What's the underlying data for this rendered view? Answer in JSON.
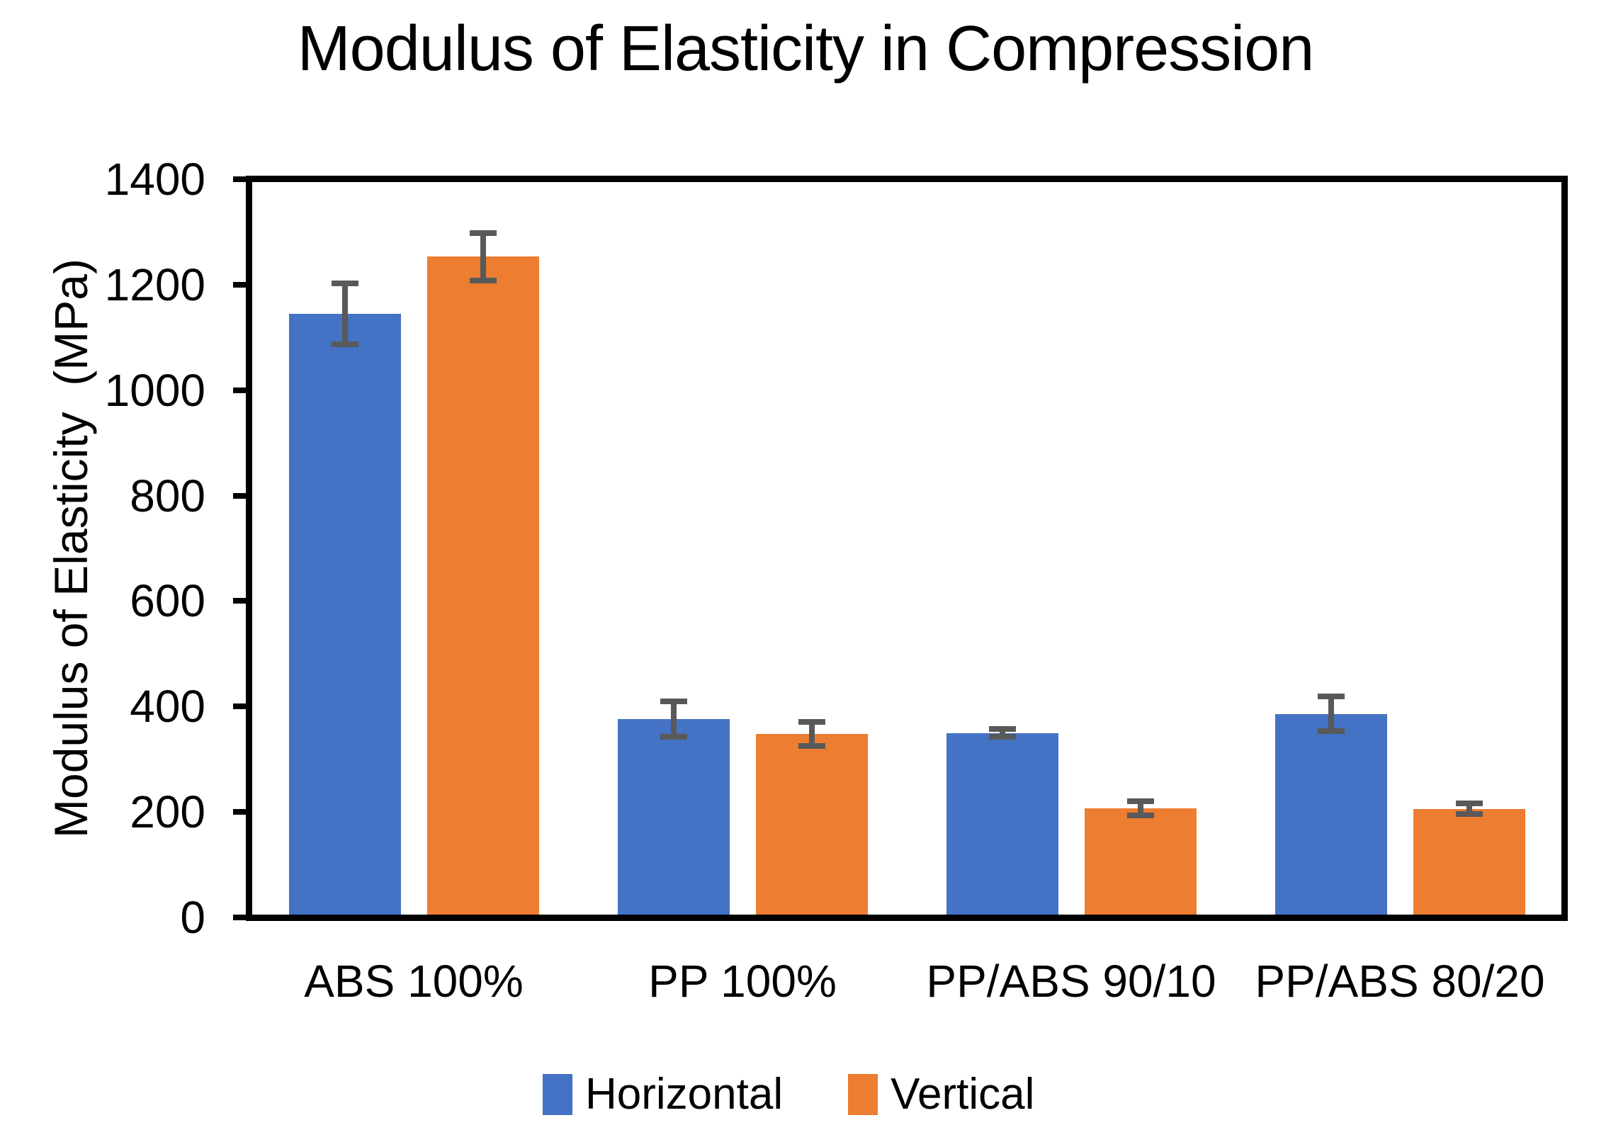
{
  "title": "Modulus of Elasticity in Compression",
  "chart_data": {
    "type": "bar",
    "title": "Modulus of Elasticity in Compression",
    "categories": [
      "ABS 100%",
      "PP 100%",
      "PP/ABS 90/10",
      "PP/ABS 80/20"
    ],
    "series": [
      {
        "name": "Horizontal",
        "color": "#4472C4",
        "values": [
          1145,
          376,
          350,
          386
        ],
        "errors": [
          58,
          34,
          8,
          33
        ]
      },
      {
        "name": "Vertical",
        "color": "#ED7D31",
        "values": [
          1253,
          348,
          207,
          206
        ],
        "errors": [
          45,
          23,
          13,
          10
        ]
      }
    ],
    "xlabel": "",
    "ylabel": "Modulus of Elasticity  (MPa)",
    "ylim": [
      0,
      1400
    ],
    "yticks": [
      0,
      200,
      400,
      600,
      800,
      1000,
      1200,
      1400
    ],
    "grid": false,
    "plot_border": true,
    "legend_position": "bottom",
    "error_bar_color": "#595959",
    "axis_color": "#000000",
    "background_color": "#FFFFFF"
  }
}
